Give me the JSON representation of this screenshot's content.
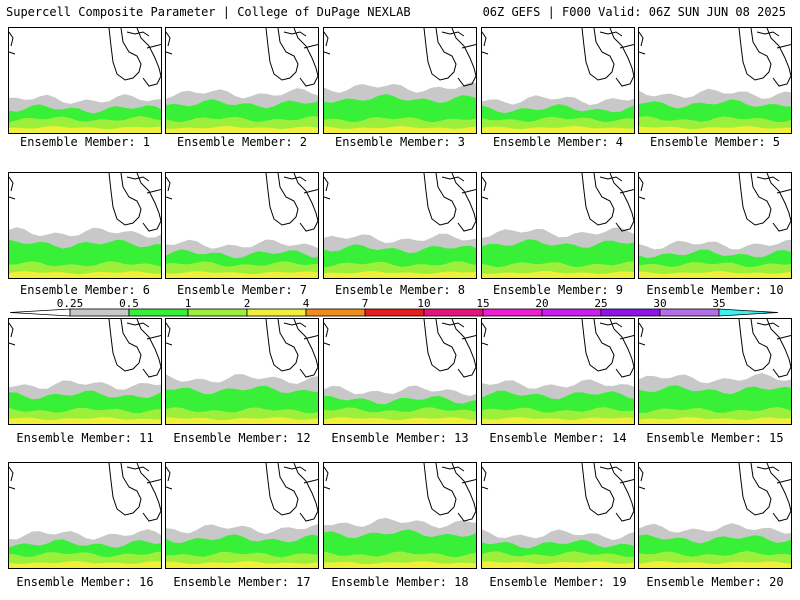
{
  "header": {
    "left": "Supercell Composite Parameter | College of DuPage NEXLAB",
    "right": "06Z GEFS | F000 Valid: 06Z SUN JUN 08 2025"
  },
  "legend": {
    "labels": [
      "0.25",
      "0.5",
      "1",
      "2",
      "4",
      "7",
      "10",
      "15",
      "20",
      "25",
      "30",
      "35"
    ],
    "colors": [
      "#c8c8c8",
      "#38f038",
      "#9cf03c",
      "#f0f03c",
      "#f08c1e",
      "#e61e1e",
      "#e6147a",
      "#f01ed2",
      "#c81ef0",
      "#8c14e6",
      "#b46ee6",
      "#3cf0f0"
    ]
  },
  "caption_prefix": "Ensemble Member: ",
  "members": [
    "1",
    "2",
    "3",
    "4",
    "5",
    "6",
    "7",
    "8",
    "9",
    "10",
    "11",
    "12",
    "13",
    "14",
    "15",
    "16",
    "17",
    "18",
    "19",
    "20"
  ],
  "map_colors": {
    "gray": "#c8c8c8",
    "green": "#38f038",
    "lightgreen": "#9cf03c",
    "yellow": "#f0f03c",
    "coast": "#000000"
  }
}
